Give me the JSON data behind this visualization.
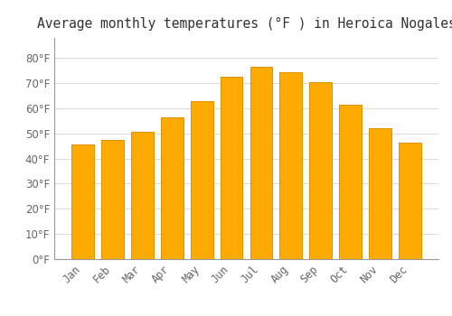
{
  "title": "Average monthly temperatures (°F ) in Heroica Nogales",
  "months": [
    "Jan",
    "Feb",
    "Mar",
    "Apr",
    "May",
    "Jun",
    "Jul",
    "Aug",
    "Sep",
    "Oct",
    "Nov",
    "Dec"
  ],
  "values": [
    45.5,
    47.5,
    50.5,
    56.5,
    63.0,
    72.5,
    76.5,
    74.5,
    70.5,
    61.5,
    52.0,
    46.5
  ],
  "bar_color": "#FFAA00",
  "bar_edge_color": "#E09000",
  "background_color": "#FFFFFF",
  "grid_color": "#DDDDDD",
  "text_color": "#666666",
  "ylim": [
    0,
    88
  ],
  "yticks": [
    0,
    10,
    20,
    30,
    40,
    50,
    60,
    70,
    80
  ],
  "title_fontsize": 10.5,
  "tick_fontsize": 8.5
}
